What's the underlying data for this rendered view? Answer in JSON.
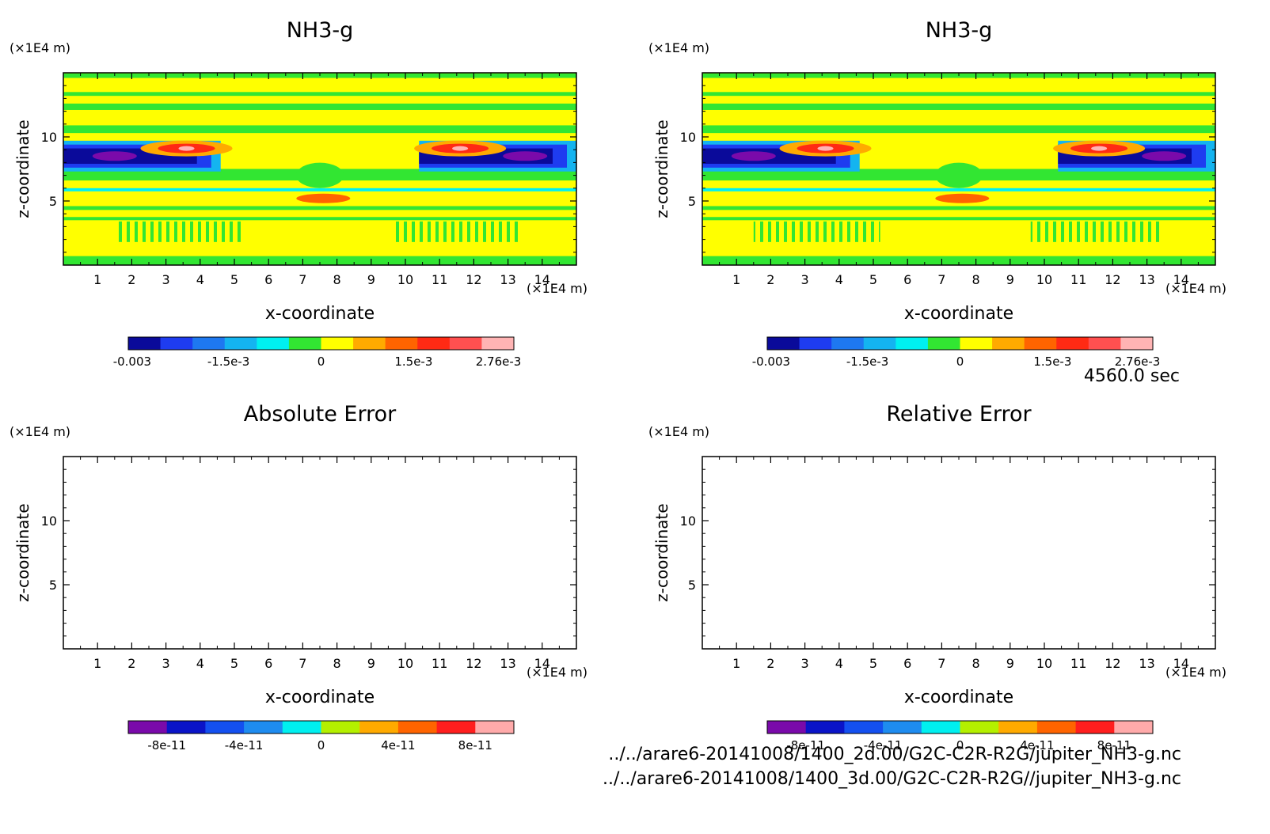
{
  "panels": [
    {
      "title": "NH3-g",
      "kind": "field",
      "xlabel": "x-coordinate",
      "ylabel": "z-coordinate",
      "x_unit": "(×1E4 m)",
      "y_unit": "(×1E4 m)",
      "colorbar_ticks": [
        "-0.003",
        "-1.5e-3",
        "0",
        "1.5e-3",
        "2.76e-3"
      ],
      "colorbar_colors": [
        "#0a0a9a",
        "#1e3cf0",
        "#1e78f0",
        "#14b4f0",
        "#00f0f0",
        "#32e632",
        "#ffff00",
        "#ffaa00",
        "#ff6400",
        "#ff2a14",
        "#ff5050",
        "#ffb4b4"
      ]
    },
    {
      "title": "NH3-g",
      "kind": "field",
      "xlabel": "x-coordinate",
      "ylabel": "z-coordinate",
      "x_unit": "(×1E4 m)",
      "y_unit": "(×1E4 m)",
      "colorbar_ticks": [
        "-0.003",
        "-1.5e-3",
        "0",
        "1.5e-3",
        "2.76e-3"
      ],
      "colorbar_colors": [
        "#0a0a9a",
        "#1e3cf0",
        "#1e78f0",
        "#14b4f0",
        "#00f0f0",
        "#32e632",
        "#ffff00",
        "#ffaa00",
        "#ff6400",
        "#ff2a14",
        "#ff5050",
        "#ffb4b4"
      ]
    },
    {
      "title": "Absolute Error",
      "kind": "empty",
      "xlabel": "x-coordinate",
      "ylabel": "z-coordinate",
      "x_unit": "(×1E4 m)",
      "y_unit": "(×1E4 m)",
      "colorbar_ticks": [
        "-8e-11",
        "-4e-11",
        "0",
        "4e-11",
        "8e-11"
      ],
      "colorbar_colors": [
        "#7a0aaa",
        "#0a14c8",
        "#1450f0",
        "#1e8cf0",
        "#00f0f0",
        "#b4f000",
        "#ffaa00",
        "#ff6400",
        "#ff1e1e",
        "#ffaaaa"
      ]
    },
    {
      "title": "Relative Error",
      "kind": "empty",
      "xlabel": "x-coordinate",
      "ylabel": "z-coordinate",
      "x_unit": "(×1E4 m)",
      "y_unit": "(×1E4 m)",
      "colorbar_ticks": [
        "-8e-11",
        "-4e-11",
        "0",
        "4e-11",
        "8e-11"
      ],
      "colorbar_colors": [
        "#7a0aaa",
        "#0a14c8",
        "#1450f0",
        "#1e8cf0",
        "#00f0f0",
        "#b4f000",
        "#ffaa00",
        "#ff6400",
        "#ff1e1e",
        "#ffaaaa"
      ]
    }
  ],
  "time_label": "4560.0 sec",
  "file_paths": [
    "../../arare6-20141008/1400_2d.00/G2C-C2R-R2G/jupiter_NH3-g.nc",
    "../../arare6-20141008/1400_3d.00/G2C-C2R-R2G//jupiter_NH3-g.nc"
  ],
  "chart_data": [
    {
      "type": "heatmap",
      "title": "NH3-g",
      "xlabel": "x-coordinate",
      "ylabel": "z-coordinate",
      "x_ticks": [
        1,
        2,
        3,
        4,
        5,
        6,
        7,
        8,
        9,
        10,
        11,
        12,
        13,
        14
      ],
      "y_ticks": [
        5,
        10
      ],
      "xlim": [
        0,
        15
      ],
      "ylim": [
        0,
        15
      ],
      "colorbar": {
        "ticks": [
          -0.003,
          -0.0015,
          0,
          0.0015,
          0.00276
        ],
        "range": [
          -0.003,
          0.00276
        ]
      },
      "features": [
        {
          "value": "negative (dark blue/purple)",
          "x_range": [
            0,
            4.5
          ],
          "z_range": [
            7.4,
            9.6
          ]
        },
        {
          "value": "negative (dark blue/purple)",
          "x_range": [
            10.5,
            15
          ],
          "z_range": [
            7.4,
            9.6
          ]
        },
        {
          "value": "positive (orange/red)",
          "x_center": 3.6,
          "z_center": 9.1
        },
        {
          "value": "positive (orange/red)",
          "x_center": 11.6,
          "z_center": 9.1
        },
        {
          "value": "positive (orange)",
          "x_center": 7.6,
          "z_center": 5.2
        }
      ]
    },
    {
      "type": "heatmap",
      "title": "NH3-g",
      "xlabel": "x-coordinate",
      "ylabel": "z-coordinate",
      "x_ticks": [
        1,
        2,
        3,
        4,
        5,
        6,
        7,
        8,
        9,
        10,
        11,
        12,
        13,
        14
      ],
      "y_ticks": [
        5,
        10
      ],
      "xlim": [
        0,
        15
      ],
      "ylim": [
        0,
        15
      ],
      "colorbar": {
        "ticks": [
          -0.003,
          -0.0015,
          0,
          0.0015,
          0.00276
        ],
        "range": [
          -0.003,
          0.00276
        ]
      }
    },
    {
      "type": "heatmap",
      "title": "Absolute Error",
      "xlabel": "x-coordinate",
      "ylabel": "z-coordinate",
      "x_ticks": [
        1,
        2,
        3,
        4,
        5,
        6,
        7,
        8,
        9,
        10,
        11,
        12,
        13,
        14
      ],
      "y_ticks": [
        5,
        10
      ],
      "xlim": [
        0,
        15
      ],
      "ylim": [
        0,
        15
      ],
      "colorbar": {
        "ticks": [
          -8e-11,
          -4e-11,
          0,
          4e-11,
          8e-11
        ]
      },
      "values": []
    },
    {
      "type": "heatmap",
      "title": "Relative Error",
      "xlabel": "x-coordinate",
      "ylabel": "z-coordinate",
      "x_ticks": [
        1,
        2,
        3,
        4,
        5,
        6,
        7,
        8,
        9,
        10,
        11,
        12,
        13,
        14
      ],
      "y_ticks": [
        5,
        10
      ],
      "xlim": [
        0,
        15
      ],
      "ylim": [
        0,
        15
      ],
      "colorbar": {
        "ticks": [
          -8e-11,
          -4e-11,
          0,
          4e-11,
          8e-11
        ]
      },
      "values": []
    }
  ]
}
